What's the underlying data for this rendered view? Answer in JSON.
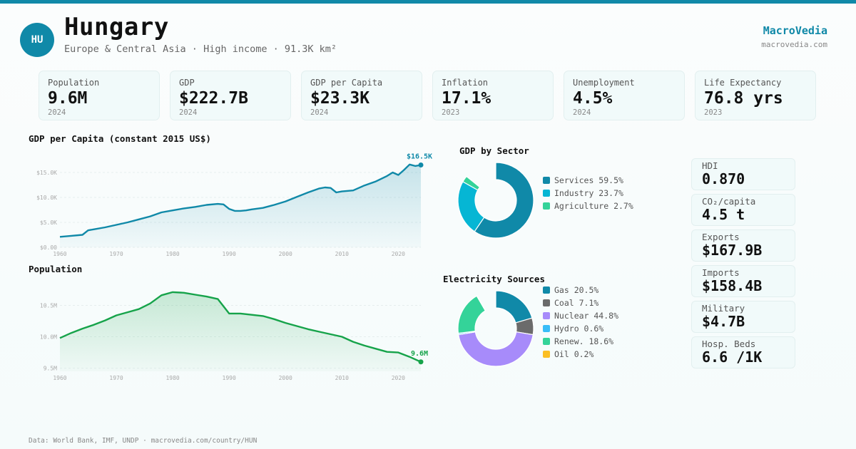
{
  "header": {
    "badge": "HU",
    "title": "Hungary",
    "subtitle": "Europe & Central Asia · High income · 91.3K km²",
    "brand": "MacroVedia",
    "brand_url": "macrovedia.com"
  },
  "kpis": [
    {
      "label": "Population",
      "value": "9.6M",
      "year": "2024"
    },
    {
      "label": "GDP",
      "value": "$222.7B",
      "year": "2024"
    },
    {
      "label": "GDP per Capita",
      "value": "$23.3K",
      "year": "2024"
    },
    {
      "label": "Inflation",
      "value": "17.1%",
      "year": "2023"
    },
    {
      "label": "Unemployment",
      "value": "4.5%",
      "year": "2024"
    },
    {
      "label": "Life Expectancy",
      "value": "76.8 yrs",
      "year": "2023"
    }
  ],
  "stats": [
    {
      "label": "HDI",
      "value": "0.870"
    },
    {
      "label": "CO₂/capita",
      "value": "4.5 t"
    },
    {
      "label": "Exports",
      "value": "$167.9B"
    },
    {
      "label": "Imports",
      "value": "$158.4B"
    },
    {
      "label": "Military",
      "value": "$4.7B"
    },
    {
      "label": "Hosp. Beds",
      "value": "6.6 /1K"
    }
  ],
  "footer": "Data: World Bank, IMF, UNDP · macrovedia.com/country/HUN",
  "colors": {
    "accent": "#1089a8",
    "population": "#16a34a"
  },
  "chart_data": [
    {
      "type": "area",
      "title": "GDP per Capita (constant 2015 US$)",
      "end_label": "$16.5K",
      "y_ticks": [
        "$0.00",
        "$5.0K",
        "$10.0K",
        "$15.0K"
      ],
      "x_ticks": [
        "1960",
        "1970",
        "1980",
        "1990",
        "2000",
        "2010",
        "2020"
      ],
      "ylim": [
        0,
        18000
      ],
      "x": [
        1960,
        1962,
        1964,
        1965,
        1966,
        1968,
        1970,
        1972,
        1974,
        1976,
        1978,
        1980,
        1982,
        1984,
        1986,
        1988,
        1989,
        1990,
        1991,
        1992,
        1993,
        1994,
        1996,
        1998,
        2000,
        2002,
        2004,
        2006,
        2007,
        2008,
        2009,
        2010,
        2012,
        2013,
        2014,
        2016,
        2018,
        2019,
        2020,
        2021,
        2022,
        2023,
        2024
      ],
      "y": [
        2100,
        2300,
        2500,
        3400,
        3600,
        4000,
        4500,
        5000,
        5600,
        6200,
        7000,
        7400,
        7800,
        8100,
        8500,
        8700,
        8600,
        7700,
        7300,
        7300,
        7400,
        7600,
        7900,
        8500,
        9200,
        10100,
        11000,
        11800,
        12000,
        11900,
        11000,
        11200,
        11400,
        11900,
        12400,
        13200,
        14300,
        15000,
        14500,
        15500,
        16600,
        16300,
        16500
      ]
    },
    {
      "type": "area",
      "title": "Population",
      "end_label": "9.6M",
      "y_ticks": [
        "9.5M",
        "10.0M",
        "10.5M"
      ],
      "x_ticks": [
        "1960",
        "1970",
        "1980",
        "1990",
        "2000",
        "2010",
        "2020"
      ],
      "ylim": [
        9.45,
        10.8
      ],
      "x": [
        1960,
        1962,
        1964,
        1966,
        1968,
        1970,
        1972,
        1974,
        1976,
        1978,
        1980,
        1982,
        1984,
        1986,
        1988,
        1990,
        1992,
        1994,
        1996,
        1998,
        2000,
        2002,
        2004,
        2006,
        2008,
        2010,
        2012,
        2014,
        2016,
        2018,
        2020,
        2022,
        2024
      ],
      "y": [
        9.98,
        10.06,
        10.13,
        10.19,
        10.26,
        10.34,
        10.39,
        10.44,
        10.53,
        10.66,
        10.71,
        10.7,
        10.67,
        10.64,
        10.6,
        10.37,
        10.37,
        10.35,
        10.33,
        10.28,
        10.22,
        10.17,
        10.12,
        10.08,
        10.04,
        10.0,
        9.92,
        9.86,
        9.81,
        9.76,
        9.75,
        9.68,
        9.6
      ]
    },
    {
      "type": "pie",
      "title": "GDP by Sector",
      "labels": [
        "Services 59.5%",
        "Industry 23.7%",
        "Agriculture 2.7%"
      ],
      "values": [
        59.5,
        23.7,
        2.7
      ],
      "colors": [
        "#1089a8",
        "#06b6d4",
        "#34d399"
      ]
    },
    {
      "type": "pie",
      "title": "Electricity Sources",
      "labels": [
        "Gas 20.5%",
        "Coal 7.1%",
        "Nuclear 44.8%",
        "Hydro 0.6%",
        "Renew. 18.6%",
        "Oil 0.2%"
      ],
      "values": [
        20.5,
        7.1,
        44.8,
        0.6,
        18.6,
        0.2
      ],
      "colors": [
        "#1089a8",
        "#6b6b6b",
        "#a78bfa",
        "#38bdf8",
        "#34d399",
        "#fbbf24"
      ]
    }
  ]
}
